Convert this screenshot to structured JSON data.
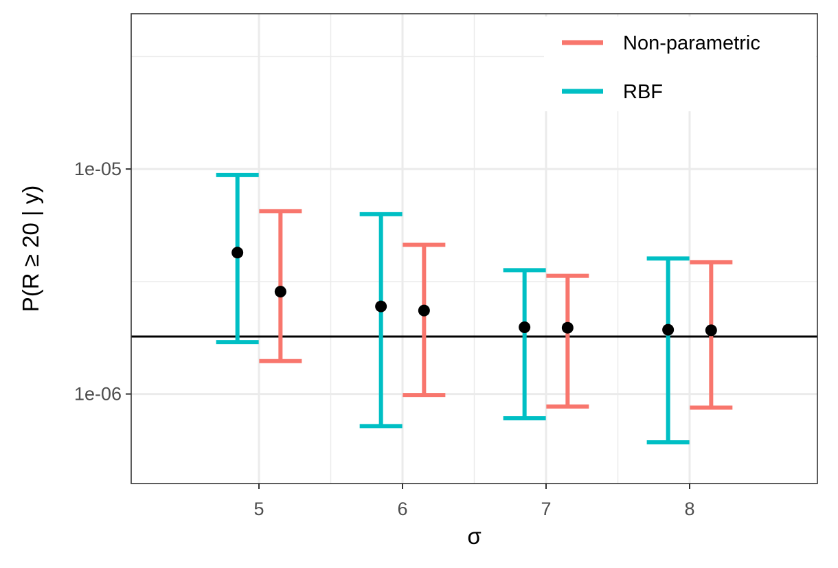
{
  "chart_data": {
    "type": "errorbar",
    "title": "",
    "xlabel": "σ",
    "ylabel": "P(R ≥ 20 | y)",
    "x_ticks": [
      5,
      6,
      7,
      8
    ],
    "x_tick_labels": [
      "5",
      "6",
      "7",
      "8"
    ],
    "xlim": [
      4.11,
      8.89
    ],
    "y_scale": "log10",
    "ylim": [
      4e-07,
      4.9e-05
    ],
    "y_ticks": [
      1e-06,
      1e-05
    ],
    "y_tick_labels": [
      "1e-06",
      "1e-05"
    ],
    "y_minor_grid": [
      3.16e-06,
      3.16e-05
    ],
    "hline": 1.8e-06,
    "dodge": 0.15,
    "series": [
      {
        "name": "Non-parametric",
        "color": "#F8766D",
        "x": [
          5,
          6,
          7,
          8
        ],
        "estimate": [
          2.85e-06,
          2.35e-06,
          1.97e-06,
          1.92e-06
        ],
        "lower": [
          1.4e-06,
          9.9e-07,
          8.8e-07,
          8.7e-07
        ],
        "upper": [
          6.5e-06,
          4.6e-06,
          3.35e-06,
          3.85e-06
        ]
      },
      {
        "name": "RBF",
        "color": "#00BFC4",
        "x": [
          5,
          6,
          7,
          8
        ],
        "estimate": [
          4.25e-06,
          2.45e-06,
          1.98e-06,
          1.93e-06
        ],
        "lower": [
          1.7e-06,
          7.2e-07,
          7.8e-07,
          6.1e-07
        ],
        "upper": [
          9.4e-06,
          6.3e-06,
          3.55e-06,
          4e-06
        ]
      }
    ],
    "legend": {
      "position": "top-right",
      "entries": [
        "Non-parametric",
        "RBF"
      ]
    },
    "grid": true,
    "point_color": "#000000"
  }
}
